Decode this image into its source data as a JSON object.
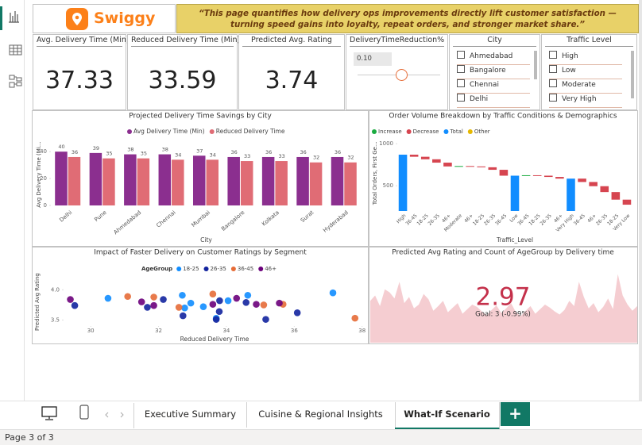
{
  "header": {
    "logo_text": "Swiggy",
    "banner": "“This page quantifies how delivery ops improvements directly lift customer satisfaction — turning speed gains into loyalty, repeat orders, and stronger market share.”"
  },
  "kpis": [
    {
      "label": "Avg. Delivery Time (Min)",
      "value": 37.33
    },
    {
      "label": "Reduced Delivery Time (Min)",
      "value": 33.59
    },
    {
      "label": "Predicted Avg. Rating",
      "value": 3.74
    }
  ],
  "slicers": {
    "reduction": {
      "title": "DeliveryTimeReduction%",
      "value": "0.10"
    },
    "city": {
      "title": "City",
      "items": [
        "Ahmedabad",
        "Bangalore",
        "Chennai",
        "Delhi"
      ]
    },
    "traffic": {
      "title": "Traffic Level",
      "items": [
        "High",
        "Low",
        "Moderate",
        "Very High"
      ]
    }
  },
  "charts": [
    {
      "type": "bar",
      "title": "Projected Delivery Time Savings by City",
      "x_label": "City",
      "y_label": "Avg Delivery Time (Mi…",
      "categories": [
        "Delhi",
        "Pune",
        "Ahmedabad",
        "Chennai",
        "Mumbai",
        "Bangalore",
        "Kolkata",
        "Surat",
        "Hyderabad"
      ],
      "series": [
        {
          "name": "Avg Delivery Time (Min)",
          "color": "#8b2f8f",
          "values": [
            40,
            39,
            38,
            38,
            37,
            36,
            36,
            36,
            36
          ]
        },
        {
          "name": "Reduced Delivery Time",
          "color": "#e06c75",
          "values": [
            36,
            35,
            35,
            34,
            34,
            33,
            33,
            32,
            32
          ]
        }
      ],
      "ylim": [
        0,
        46
      ],
      "yticks": [
        0,
        20,
        40
      ]
    },
    {
      "type": "waterfall",
      "title": "Order Volume Breakdown by Traffic Conditions & Demographics",
      "x_label": "Traffic_Level",
      "y_label": "Total Orders, First Ge...",
      "legend": [
        {
          "name": "Increase",
          "color": "#1aab40"
        },
        {
          "name": "Decrease",
          "color": "#d64550"
        },
        {
          "name": "Total",
          "color": "#118dff"
        },
        {
          "name": "Other",
          "color": "#e6b800"
        }
      ],
      "categories": [
        "High",
        "36-45",
        "18-25",
        "26-35",
        "46+",
        "Moderate",
        "46+",
        "18-25",
        "26-35",
        "36-45",
        "Low",
        "36-45",
        "18-25",
        "26-35",
        "46+",
        "Very High",
        "36-45",
        "46+",
        "26-35",
        "18-25",
        "Very Low"
      ],
      "values": [
        870,
        -25,
        -30,
        -40,
        -45,
        5,
        -5,
        -10,
        -30,
        -70,
        620,
        5,
        -5,
        -15,
        -20,
        585,
        -40,
        -50,
        -70,
        -90,
        -60
      ],
      "kinds": [
        "Total",
        "Decrease",
        "Decrease",
        "Decrease",
        "Decrease",
        "Increase",
        "Decrease",
        "Decrease",
        "Decrease",
        "Decrease",
        "Total",
        "Increase",
        "Decrease",
        "Decrease",
        "Decrease",
        "Total",
        "Decrease",
        "Decrease",
        "Decrease",
        "Decrease",
        "Decrease"
      ],
      "ylim": [
        200,
        1100
      ],
      "yticks": [
        500,
        1000
      ]
    },
    {
      "type": "scatter",
      "title": "Impact of Faster Delivery on Customer Ratings by Segment",
      "x_label": "Reduced Delivery Time",
      "y_label": "Predicted Avg Rating",
      "legend_title": "AgeGroup",
      "series": [
        {
          "name": "18-25",
          "color": "#118dff",
          "x": [
            30.51,
            32.77,
            32.95,
            37.14,
            33.32,
            34.05,
            33.7,
            34.63,
            32.7
          ],
          "y": [
            3.86,
            3.7,
            3.78,
            3.95,
            3.72,
            3.82,
            3.53,
            3.91,
            3.91
          ]
        },
        {
          "name": "26-35",
          "color": "#12239e",
          "x": [
            29.53,
            31.67,
            32.14,
            32.72,
            33.7,
            34.58,
            33.79,
            35.16,
            36.09,
            33.8
          ],
          "y": [
            3.74,
            3.71,
            3.84,
            3.57,
            3.51,
            3.79,
            3.64,
            3.51,
            3.62,
            3.82
          ]
        },
        {
          "name": "36-45",
          "color": "#e66c37",
          "x": [
            31.09,
            32.6,
            33.6,
            35.1,
            35.67,
            37.79,
            31.86
          ],
          "y": [
            3.89,
            3.71,
            3.93,
            3.75,
            3.76,
            3.53,
            3.88
          ]
        },
        {
          "name": "46+",
          "color": "#6b007b",
          "x": [
            29.4,
            31.5,
            31.86,
            33.6,
            34.88,
            34.3,
            35.56
          ],
          "y": [
            3.84,
            3.8,
            3.74,
            3.76,
            3.76,
            3.86,
            3.78
          ]
        }
      ],
      "xlim": [
        29.2,
        38.1
      ],
      "xticks": [
        30,
        32,
        34,
        36,
        38
      ],
      "ylim": [
        3.4,
        4.2
      ],
      "yticks": [
        {
          "value": 4.0,
          "label": "4.0"
        },
        3.5
      ]
    },
    {
      "type": "area",
      "title": "Predicted Avg Rating and Count of AgeGroup by Delivery time",
      "color": "#f5cdd1",
      "values": [
        55,
        62,
        48,
        70,
        66,
        58,
        80,
        52,
        60,
        45,
        50,
        64,
        57,
        42,
        48,
        55,
        40,
        46,
        52,
        38,
        44,
        50,
        47,
        41,
        36,
        43,
        49,
        39,
        45,
        52,
        40,
        35,
        42,
        48,
        38,
        44,
        50,
        46,
        41,
        37,
        43,
        55,
        48,
        80,
        60,
        45,
        52,
        40,
        47,
        58,
        44,
        90,
        62,
        50,
        42,
        48
      ],
      "ylim": [
        0,
        100
      ],
      "kpi_value": 2.97,
      "kpi_color": "#c4314b",
      "kpi_goal": "Goal: 3 (-0.99%)"
    }
  ],
  "tabs": [
    "Executive Summary",
    "Cuisine & Regional Insights",
    "What-If Scenario"
  ],
  "add_tab": "+",
  "status": "Page 3 of 3"
}
